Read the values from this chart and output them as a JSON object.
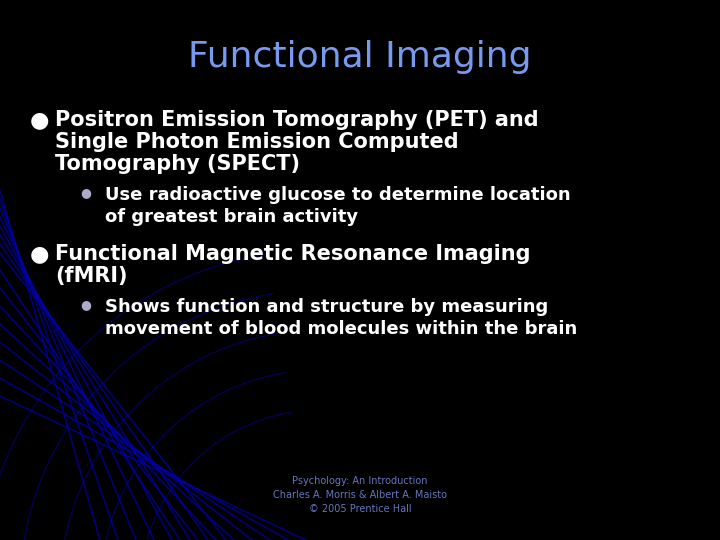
{
  "title": "Functional Imaging",
  "title_color": "#7799ee",
  "background_color": "#000000",
  "bullet1_line1": "Positron Emission Tomography (PET) and",
  "bullet1_line2": "Single Photon Emission Computed",
  "bullet1_line3": "Tomography (SPECT)",
  "sub_bullet1_line1": "Use radioactive glucose to determine location",
  "sub_bullet1_line2": "of greatest brain activity",
  "bullet2_line1": "Functional Magnetic Resonance Imaging",
  "bullet2_line2": "(fMRI)",
  "sub_bullet2_line1": "Shows function and structure by measuring",
  "sub_bullet2_line2": "movement of blood molecules within the brain",
  "footer_line1": "Psychology: An Introduction",
  "footer_line2": "Charles A. Morris & Albert A. Maisto",
  "footer_line3": "© 2005 Prentice Hall",
  "text_color": "#ffffff",
  "footer_color": "#6677bb",
  "bullet_color": "#ffffff",
  "sub_bullet_color": "#aaaacc",
  "title_fontsize": 26,
  "bullet_fontsize": 15,
  "sub_bullet_fontsize": 13
}
